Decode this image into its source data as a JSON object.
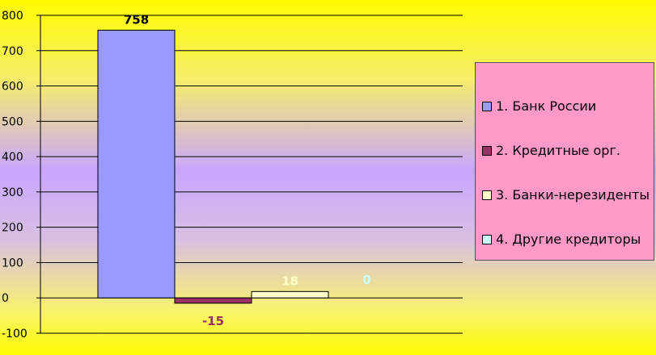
{
  "chart_data": {
    "type": "bar",
    "categories": [
      "1. Банк России",
      "2. Кредитные орг.",
      "3. Банки-нерезиденты",
      "4. Другие кредиторы"
    ],
    "values": [
      758,
      -15,
      18,
      0
    ],
    "data_labels": [
      "758",
      "-15",
      "18",
      "0"
    ],
    "colors": [
      "#9999ff",
      "#993366",
      "#ffffcc",
      "#ccffff"
    ],
    "label_colors": [
      "#000000",
      "#993366",
      "#ffffcc",
      "#ccffff"
    ],
    "title": "",
    "xlabel": "",
    "ylabel": "",
    "ylim": [
      -100,
      800
    ],
    "yticks": [
      "800",
      "700",
      "600",
      "500",
      "400",
      "300",
      "200",
      "100",
      "0",
      "-100"
    ],
    "grid": true,
    "legend_placement": "right"
  }
}
